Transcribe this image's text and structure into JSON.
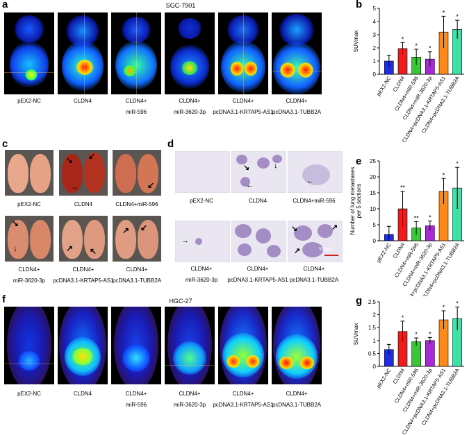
{
  "panel_labels": {
    "a": "a",
    "b": "b",
    "c": "c",
    "d": "d",
    "e": "e",
    "f": "f",
    "g": "g"
  },
  "panel_a": {
    "title": "SGC-7901",
    "captions": [
      {
        "l1": "pEX2-NC",
        "l2": ""
      },
      {
        "l1": "CLDN4",
        "l2": ""
      },
      {
        "l1": "CLDN4+",
        "l2": "miR-596"
      },
      {
        "l1": "CLDN4+",
        "l2": "miR-3620-3p"
      },
      {
        "l1": "CLDN4+",
        "l2": "pcDNA3.1-KRTAP5-AS1"
      },
      {
        "l1": "CLDN4+",
        "l2": "pcDNA3.1-TUBB2A"
      }
    ]
  },
  "panel_c": {
    "captions": [
      {
        "l1": "pEX2-NC",
        "l2": ""
      },
      {
        "l1": "CLDN4",
        "l2": ""
      },
      {
        "l1": "CLDN4+miR-596",
        "l2": ""
      },
      {
        "l1": "CLDN4+",
        "l2": "miR-3620-3p"
      },
      {
        "l1": "CLDN4+",
        "l2": "pcDNA3.1-KRTAP5-AS1"
      },
      {
        "l1": "CLDN4+",
        "l2": "pcDNA3.1-TUBB2A"
      }
    ]
  },
  "panel_d": {
    "captions": [
      {
        "l1": "pEX2-NC",
        "l2": ""
      },
      {
        "l1": "CLDN4",
        "l2": ""
      },
      {
        "l1": "CLDN4+miR-596",
        "l2": ""
      },
      {
        "l1": "CLDN4+",
        "l2": "miR-3620-3p"
      },
      {
        "l1": "CLDN4+",
        "l2": "pcDNA3.1-KRTAP5-AS1"
      },
      {
        "l1": "CLDN4+",
        "l2": "pcDNA3.1-TUBB2A"
      }
    ],
    "scale_bar": "500μm"
  },
  "panel_f": {
    "title": "HGC-27",
    "captions": [
      {
        "l1": "pEX2-NC",
        "l2": ""
      },
      {
        "l1": "CLDN4",
        "l2": ""
      },
      {
        "l1": "CLDN4+",
        "l2": "miR-596"
      },
      {
        "l1": "CLDN4+",
        "l2": "miR-3620-3p"
      },
      {
        "l1": "CLDN4+",
        "l2": "pcDNA3.1-KRTAP5-AS1"
      },
      {
        "l1": "CLDN4+",
        "l2": "pcDNA3.1-TUBB2A"
      }
    ]
  },
  "colors": [
    "#1f2ee0",
    "#ee1c1c",
    "#37c737",
    "#a62bd6",
    "#ff8a1a",
    "#3fe0a6"
  ],
  "chart_data": [
    {
      "id": "b",
      "type": "bar",
      "categories": [
        "pEX2-NC",
        "CLDN4",
        "CLDN4+miR-596",
        "CLDN4+miR-3620-3p",
        "CLDN4+pcDNA3.1-KRTAP5-AS1",
        "CLDN4+pcDNA3.1-TUBB2A"
      ],
      "values": [
        1.0,
        1.95,
        1.3,
        1.15,
        3.2,
        3.4
      ],
      "errors": [
        0.45,
        0.45,
        0.6,
        0.55,
        1.2,
        0.7
      ],
      "significance": [
        "",
        "*",
        "*",
        "*",
        "*",
        "*"
      ],
      "ylabel": "SUVmax",
      "ylim": [
        0,
        5
      ],
      "yticks": [
        0,
        1,
        2,
        3,
        4,
        5
      ],
      "grid": false
    },
    {
      "id": "e",
      "type": "bar",
      "categories": [
        "pEX2-NC",
        "CLDN4",
        "CLDN4+miR-596",
        "CLDN4+miR-3620-3p",
        "CLDN4+pcDNA3.1-KRTAP5-AS1",
        "CLDN4+pcDNA3.1-TUBB2A"
      ],
      "values": [
        2.0,
        10.0,
        4.0,
        4.7,
        15.5,
        16.5
      ],
      "errors": [
        2.5,
        5.5,
        2.0,
        1.5,
        4.0,
        6.5
      ],
      "significance": [
        "",
        "**",
        "**",
        "*",
        "*",
        "*"
      ],
      "ylabel": "Number of lung metastases per 5 sections",
      "ylim": [
        0,
        25
      ],
      "yticks": [
        0,
        5,
        10,
        15,
        20,
        25
      ],
      "grid": false
    },
    {
      "id": "g",
      "type": "bar",
      "categories": [
        "pEX2-NC",
        "CLDN4",
        "CLDN4+miR-596",
        "CLDN4+miR-3620-3p",
        "CLDN4+pcDNA3.1-KRTAP5-AS1",
        "CLDN4+pcDNA3.1-TUBB2A"
      ],
      "values": [
        0.65,
        1.35,
        0.95,
        1.0,
        1.8,
        1.85
      ],
      "errors": [
        0.2,
        0.4,
        0.15,
        0.12,
        0.35,
        0.45
      ],
      "significance": [
        "",
        "*",
        "*",
        "*",
        "*",
        "*"
      ],
      "ylabel": "SUVmax",
      "ylim": [
        0,
        2.5
      ],
      "yticks": [
        0,
        0.5,
        1,
        1.5,
        2,
        2.5
      ],
      "grid": false
    }
  ]
}
